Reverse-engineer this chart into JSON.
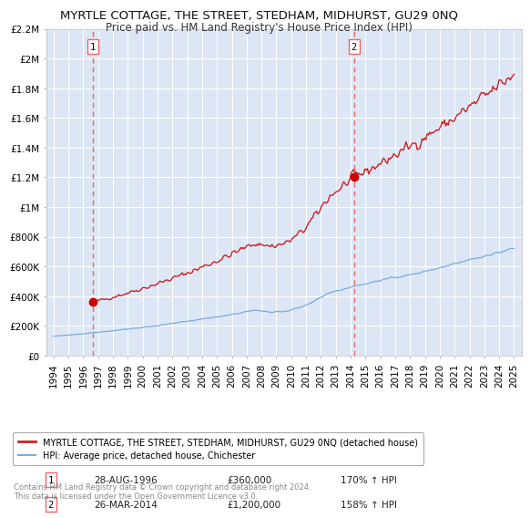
{
  "title": "MYRTLE COTTAGE, THE STREET, STEDHAM, MIDHURST, GU29 0NQ",
  "subtitle": "Price paid vs. HM Land Registry's House Price Index (HPI)",
  "title_fontsize": 9.5,
  "subtitle_fontsize": 8.5,
  "background_color": "#ffffff",
  "plot_bg_color": "#dce6f5",
  "grid_color": "#ffffff",
  "ylim": [
    0,
    2200000
  ],
  "xlim_start": 1993.5,
  "xlim_end": 2025.5,
  "yticks": [
    0,
    200000,
    400000,
    600000,
    800000,
    1000000,
    1200000,
    1400000,
    1600000,
    1800000,
    2000000,
    2200000
  ],
  "ytick_labels": [
    "£0",
    "£200K",
    "£400K",
    "£600K",
    "£800K",
    "£1M",
    "£1.2M",
    "£1.4M",
    "£1.6M",
    "£1.8M",
    "£2M",
    "£2.2M"
  ],
  "xtick_years": [
    1994,
    1995,
    1996,
    1997,
    1998,
    1999,
    2000,
    2001,
    2002,
    2003,
    2004,
    2005,
    2006,
    2007,
    2008,
    2009,
    2010,
    2011,
    2012,
    2013,
    2014,
    2015,
    2016,
    2017,
    2018,
    2019,
    2020,
    2021,
    2022,
    2023,
    2024,
    2025
  ],
  "purchase1_x": 1996.65,
  "purchase1_y": 360000,
  "purchase1_date": "28-AUG-1996",
  "purchase1_price": "£360,000",
  "purchase1_hpi": "170% ↑ HPI",
  "purchase2_x": 2014.23,
  "purchase2_y": 1200000,
  "purchase2_date": "26-MAR-2014",
  "purchase2_price": "£1,200,000",
  "purchase2_hpi": "158% ↑ HPI",
  "red_line_color": "#cc2222",
  "blue_line_color": "#7aaadd",
  "marker_color": "#cc0000",
  "dashed_line_color": "#ee6666",
  "legend_label_red": "MYRTLE COTTAGE, THE STREET, STEDHAM, MIDHURST, GU29 0NQ (detached house)",
  "legend_label_blue": "HPI: Average price, detached house, Chichester",
  "footer_line1": "Contains HM Land Registry data © Crown copyright and database right 2024.",
  "footer_line2": "This data is licensed under the Open Government Licence v3.0."
}
